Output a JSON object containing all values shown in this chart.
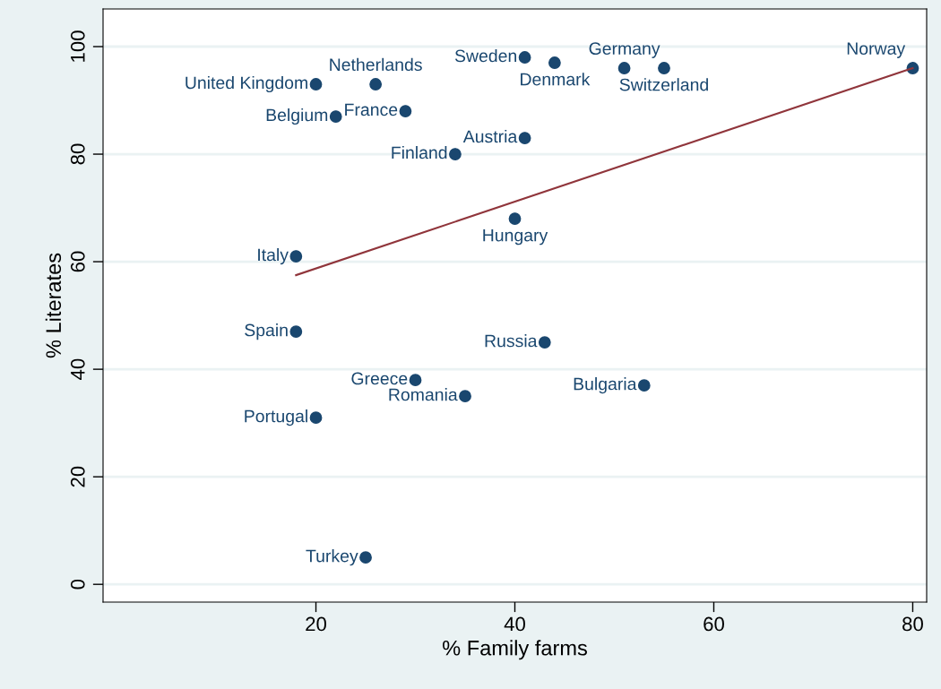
{
  "chart_data": {
    "type": "scatter",
    "xlabel": "% Family farms",
    "ylabel": "% Literates",
    "xlim": [
      -1.4,
      81.4
    ],
    "ylim": [
      -3.3,
      107
    ],
    "xticks": [
      20,
      40,
      60,
      80
    ],
    "yticks": [
      0,
      20,
      40,
      60,
      80,
      100
    ],
    "grid": "y",
    "series": [
      {
        "marker": "circle",
        "color": "#1a476f",
        "x": [
          20,
          26,
          22,
          29,
          41,
          44,
          51,
          55,
          80,
          41,
          34,
          40,
          18,
          18,
          43,
          30,
          35,
          53,
          20,
          25
        ],
        "values": [
          93,
          93,
          87,
          88,
          98,
          97,
          96,
          96,
          96,
          83,
          80,
          68,
          61,
          47,
          45,
          38,
          35,
          37,
          31,
          5
        ]
      },
      {
        "type": "line",
        "color": "#90353b",
        "x": [
          18,
          80
        ],
        "values": [
          57.5,
          96
        ]
      }
    ],
    "annotations": [
      {
        "text": "United Kingdom",
        "x": 20,
        "y": 93
      },
      {
        "text": "Netherlands",
        "x": 26,
        "y": 93
      },
      {
        "text": "Belgium",
        "x": 22,
        "y": 87
      },
      {
        "text": "France",
        "x": 29,
        "y": 88
      },
      {
        "text": "Sweden",
        "x": 41,
        "y": 98
      },
      {
        "text": "Denmark",
        "x": 44,
        "y": 97
      },
      {
        "text": "Germany",
        "x": 51,
        "y": 96
      },
      {
        "text": "Switzerland",
        "x": 55,
        "y": 96
      },
      {
        "text": "Norway",
        "x": 80,
        "y": 96
      },
      {
        "text": "Austria",
        "x": 41,
        "y": 83
      },
      {
        "text": "Finland",
        "x": 34,
        "y": 80
      },
      {
        "text": "Hungary",
        "x": 40,
        "y": 68
      },
      {
        "text": "Italy",
        "x": 18,
        "y": 61
      },
      {
        "text": "Spain",
        "x": 18,
        "y": 47
      },
      {
        "text": "Russia",
        "x": 43,
        "y": 45
      },
      {
        "text": "Greece",
        "x": 30,
        "y": 38
      },
      {
        "text": "Romania",
        "x": 35,
        "y": 35
      },
      {
        "text": "Bulgaria",
        "x": 53,
        "y": 37
      },
      {
        "text": "Portugal",
        "x": 20,
        "y": 31
      },
      {
        "text": "Turkey",
        "x": 25,
        "y": 5
      }
    ]
  }
}
